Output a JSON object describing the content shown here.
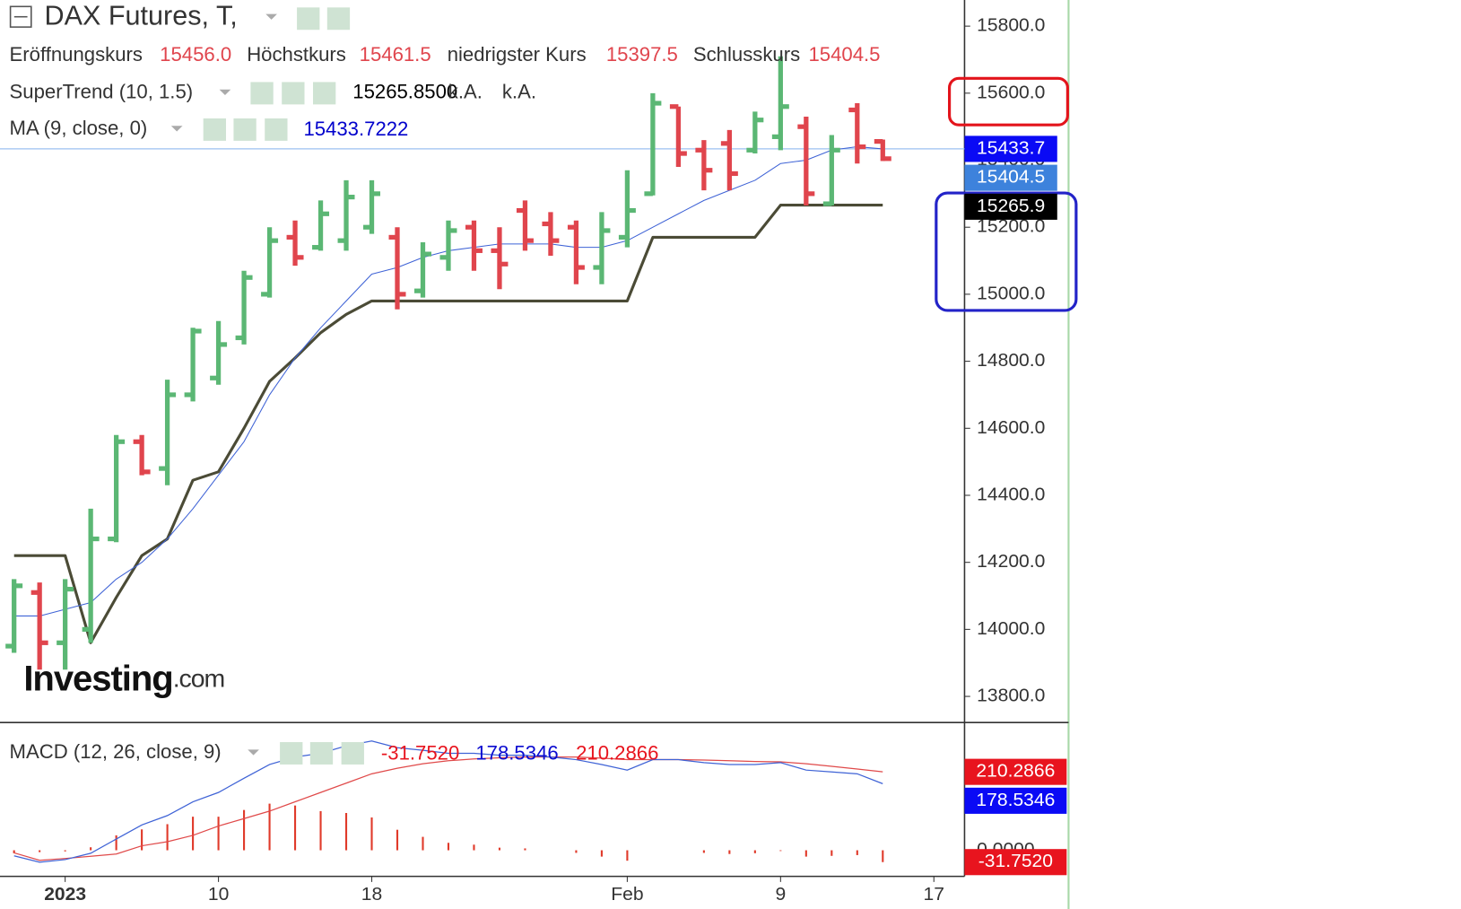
{
  "chart_data": [
    {
      "type": "ohlc",
      "title": "DAX Futures, T,",
      "ohlc_labels": [
        {
          "name": "Eröffnungskurs",
          "value": 15456,
          "label": "15456.0"
        },
        {
          "name": "Höchstkurs",
          "value": 15461.5,
          "label": "15461.5"
        },
        {
          "name": "niedrigster Kurs",
          "value": 15397.5,
          "label": "15397.5"
        },
        {
          "name": "Schlusskurs",
          "value": 15404.5,
          "label": "15404.5"
        }
      ],
      "up_color": "#5bb774",
      "down_color": "#e0454d",
      "open": [
        13950,
        14110,
        13960,
        14000,
        14270,
        14560,
        14480,
        14700,
        14750,
        14870,
        15000,
        15170,
        15140,
        15160,
        15200,
        15170,
        15010,
        15110,
        15200,
        15130,
        15250,
        15210,
        15200,
        15080,
        15170,
        15300,
        15560,
        15430,
        15450,
        15430,
        15470,
        15500,
        15270,
        15550,
        15456
      ],
      "high": [
        14150,
        14140,
        14150,
        14360,
        14580,
        14580,
        14745,
        14900,
        14920,
        15070,
        15200,
        15220,
        15280,
        15340,
        15340,
        15200,
        15155,
        15220,
        15220,
        15200,
        15280,
        15245,
        15220,
        15245,
        15370,
        15600,
        15560,
        15460,
        15490,
        15545,
        15710,
        15530,
        15475,
        15570,
        15461.5
      ],
      "low": [
        13930,
        13880,
        13880,
        13960,
        14260,
        14460,
        14430,
        14680,
        14730,
        14850,
        14990,
        15085,
        15130,
        15130,
        15180,
        14955,
        14990,
        15070,
        15070,
        15015,
        15130,
        15115,
        15030,
        15030,
        15140,
        15295,
        15380,
        15310,
        15310,
        15420,
        15430,
        15265,
        15265,
        15390,
        15397.5
      ],
      "close": [
        14130,
        13960,
        14120,
        14270,
        14560,
        14470,
        14700,
        14890,
        14850,
        15050,
        15160,
        15110,
        15240,
        15290,
        15300,
        15000,
        15120,
        15190,
        15130,
        15090,
        15160,
        15160,
        15080,
        15190,
        15250,
        15570,
        15420,
        15370,
        15360,
        15520,
        15560,
        15300,
        15430,
        15440,
        15404.5
      ],
      "series": [
        {
          "name": "SuperTrend (10, 1.5)",
          "color": "#4b4b36",
          "width": 3,
          "last": {
            "value": 15265.85,
            "label": "15265.8500"
          },
          "notes": [
            "k.A.",
            "k.A."
          ],
          "values": [
            14220,
            14220,
            14220,
            13960,
            14095,
            14220,
            14270,
            14445,
            14470,
            14600,
            14740,
            14810,
            14885,
            14940,
            14980,
            14980,
            14980,
            14980,
            14980,
            14980,
            14980,
            14980,
            14980,
            14980,
            14980,
            15170,
            15170,
            15170,
            15170,
            15170,
            15265.85,
            15265.85,
            15265.85,
            15265.85,
            15265.85
          ]
        },
        {
          "name": "MA (9, close, 0)",
          "color": "#3f63d6",
          "width": 1,
          "label_color": "#0000cc",
          "last": {
            "value": 15433.7222,
            "label": "15433.7222"
          },
          "values": [
            14040,
            14040,
            14060,
            14080,
            14150,
            14200,
            14270,
            14360,
            14460,
            14560,
            14700,
            14810,
            14900,
            14980,
            15060,
            15080,
            15110,
            15130,
            15140,
            15150,
            15150,
            15150,
            15140,
            15140,
            15160,
            15200,
            15240,
            15280,
            15310,
            15340,
            15390,
            15400,
            15430,
            15440,
            15433.7222
          ]
        }
      ],
      "price_labels": [
        {
          "value": 15433.7,
          "color": "#0a0af5",
          "line": true
        },
        {
          "value": 15404.5,
          "color": "#3d82dc"
        },
        {
          "value": 15265.9,
          "color": "#000000"
        }
      ],
      "xlim": [
        -0.55,
        37.2
      ],
      "xticks": [
        {
          "value": 2,
          "label": "2023"
        },
        {
          "value": 8,
          "label": "10"
        },
        {
          "value": 14,
          "label": "18"
        },
        {
          "value": 24,
          "label": "Feb"
        },
        {
          "value": 30,
          "label": "9"
        },
        {
          "value": 36,
          "label": "17"
        }
      ],
      "ylim": [
        13722,
        15878
      ],
      "yticks": [
        {
          "value": 13800,
          "label": "13800.0"
        },
        {
          "value": 14000,
          "label": "14000.0"
        },
        {
          "value": 14200,
          "label": "14200.0"
        },
        {
          "value": 14400,
          "label": "14400.0"
        },
        {
          "value": 14600,
          "label": "14600.0"
        },
        {
          "value": 14800,
          "label": "14800.0"
        },
        {
          "value": 15000,
          "label": "15000.0"
        },
        {
          "value": 15200,
          "label": "15200.0"
        },
        {
          "value": 15400,
          "label": "15400.0"
        },
        {
          "value": 15600,
          "label": "15600.0"
        },
        {
          "value": 15800,
          "label": "15800.0"
        }
      ],
      "watermark": [
        "Investing",
        ".com"
      ]
    },
    {
      "type": "macd",
      "title": "MACD (12, 26, close, 9)",
      "macd_color": "#3f63d6",
      "signal_color": "#e04a4a",
      "hist_color": "#e03a2a",
      "macd": [
        -15,
        -32,
        -25,
        -8,
        30,
        68,
        93,
        130,
        155,
        193,
        230,
        250,
        260,
        280,
        293,
        275,
        268,
        260,
        260,
        255,
        255,
        250,
        243,
        230,
        215,
        243,
        243,
        235,
        230,
        230,
        235,
        215,
        210,
        205,
        178.5346
      ],
      "signal": [
        -7,
        -27,
        -22,
        -16,
        -10,
        12,
        23,
        40,
        65,
        85,
        105,
        130,
        155,
        180,
        205,
        220,
        232,
        240,
        245,
        248,
        250,
        250,
        250,
        247,
        243,
        243,
        243,
        242,
        240,
        238,
        237,
        232,
        225,
        218,
        210.2866
      ],
      "histogram": [
        -8,
        -5,
        -3,
        8,
        40,
        56,
        70,
        90,
        90,
        108,
        125,
        120,
        105,
        100,
        88,
        55,
        36,
        20,
        15,
        7,
        5,
        0,
        -7,
        -17,
        -28,
        0,
        0,
        -7,
        -10,
        -8,
        -2,
        -17,
        -15,
        -13,
        -31.752
      ],
      "value_labels": [
        {
          "value": -31.752,
          "label": "-31.7520",
          "color": "#e8141e",
          "text_color": "#e8141e"
        },
        {
          "value": 178.5346,
          "color": "#0a0af5",
          "text_color": "#0a0ad0"
        },
        {
          "value": 210.2866,
          "color": "#e8141e",
          "text_color": "#e8141e"
        }
      ],
      "ylim": [
        -70,
        340
      ],
      "yticks": [
        {
          "value": 0,
          "label": "0.0000"
        }
      ]
    }
  ]
}
